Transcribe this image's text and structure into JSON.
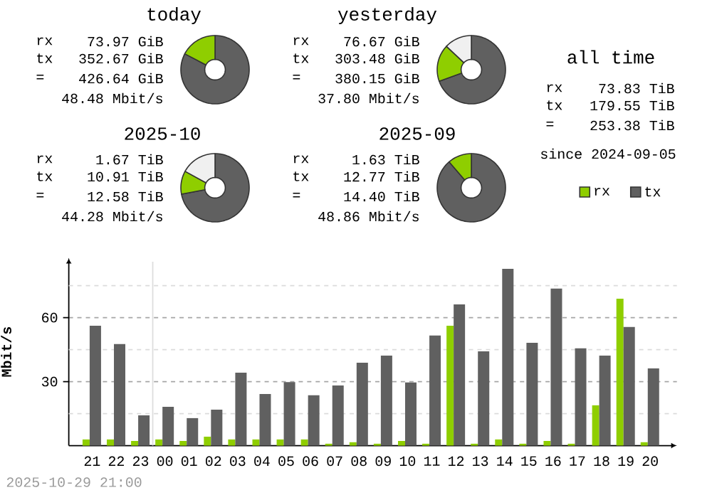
{
  "chart_data": [
    {
      "type": "donut",
      "title": "today",
      "categories": [
        null,
        null
      ],
      "values": [
        82.7,
        17.3
      ],
      "colors": [
        "#606060",
        "#8fce00"
      ],
      "annotations": [
        "rx",
        "73.97 GiB",
        "tx",
        "352.67 GiB",
        "=",
        "426.64 GiB",
        "48.48 Mbit/s"
      ]
    },
    {
      "type": "donut",
      "title": "yesterday",
      "categories": [
        null,
        null,
        null
      ],
      "values": [
        69.5,
        17.5,
        13
      ],
      "colors": [
        "#606060",
        "#8fce00",
        "#f0f0f0"
      ],
      "annotations": [
        "rx",
        "76.67 GiB",
        "tx",
        "303.48 GiB",
        "=",
        "380.15 GiB",
        "37.80 Mbit/s"
      ]
    },
    {
      "type": "other",
      "title": "all time",
      "annotations": [
        "rx",
        "73.83 TiB",
        "tx",
        "179.55 TiB",
        "=",
        "253.38 TiB",
        "since 2024-09-05"
      ]
    },
    {
      "type": "donut",
      "title": "2025-10",
      "categories": [
        null,
        null,
        null
      ],
      "values": [
        72,
        11,
        17
      ],
      "colors": [
        "#606060",
        "#8fce00",
        "#f0f0f0"
      ],
      "annotations": [
        "rx",
        "1.67 TiB",
        "tx",
        "10.91 TiB",
        "=",
        "12.58 TiB",
        "44.28 Mbit/s"
      ]
    },
    {
      "type": "donut",
      "title": "2025-09",
      "categories": [
        null,
        null
      ],
      "values": [
        88.7,
        11.3
      ],
      "colors": [
        "#606060",
        "#8fce00"
      ],
      "annotations": [
        "rx",
        "1.63 TiB",
        "tx",
        "12.77 TiB",
        "=",
        "14.40 TiB",
        "48.86 Mbit/s"
      ]
    },
    {
      "type": "bar",
      "ylabel": "Mbit/s",
      "categories": [
        "21",
        "22",
        "23",
        "00",
        "01",
        "02",
        "03",
        "04",
        "05",
        "06",
        "07",
        "08",
        "09",
        "10",
        "11",
        "12",
        "13",
        "14",
        "15",
        "16",
        "17",
        "18",
        "19",
        "20"
      ],
      "series": [
        {
          "name": "rx",
          "color": "#8fce00",
          "values": [
            2.9,
            2.9,
            2.2,
            2.9,
            2.2,
            4.2,
            2.9,
            2.9,
            2.9,
            2.9,
            0.9,
            1.6,
            0.9,
            2.2,
            0.9,
            56.2,
            0.9,
            2.9,
            0.9,
            2.2,
            0.9,
            18.9,
            68.9,
            1.6
          ]
        },
        {
          "name": "tx",
          "color": "#606060",
          "values": [
            56.2,
            47.6,
            14.2,
            18.2,
            12.9,
            16.9,
            34.2,
            24.2,
            29.8,
            23.6,
            28.2,
            38.9,
            42.2,
            29.6,
            51.6,
            66.2,
            44.2,
            82.9,
            48.2,
            73.6,
            45.6,
            42.2,
            55.6,
            36.2
          ]
        }
      ],
      "ylim": [
        0,
        88
      ],
      "yticks": [
        {
          "value": 15,
          "label": null
        },
        30,
        {
          "value": 45,
          "label": null
        },
        60,
        {
          "value": 75,
          "label": null
        }
      ],
      "grid": "y",
      "legend": "top right",
      "ref_lines": [
        {
          "axis": "x",
          "value": "00",
          "label": null,
          "color": "#dddddd"
        }
      ],
      "annotations": [
        "2025-10-29 21:00"
      ]
    }
  ]
}
